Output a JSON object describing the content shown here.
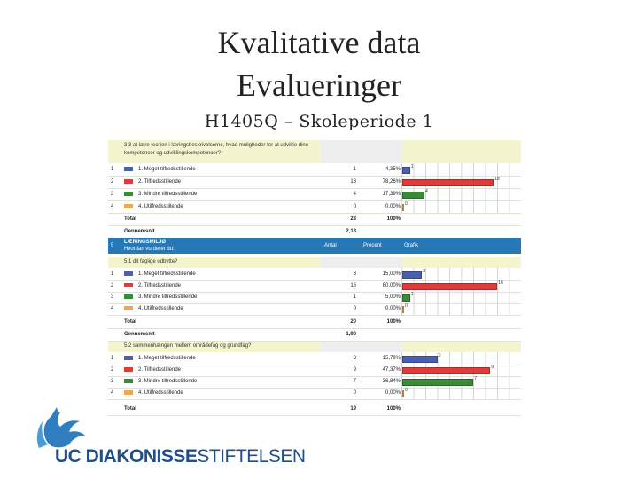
{
  "slide": {
    "title_line1": "Kvalitative data",
    "title_line2": "Evalueringer",
    "subtitle": "H1405Q – Skoleperiode 1"
  },
  "colors": {
    "blue": "#4a5fb0",
    "red": "#e23a3a",
    "green": "#3a8a3a",
    "orange": "#f0a848",
    "header": "#2779b5",
    "question_bg": "#f4f4cf"
  },
  "table_top": {
    "question": "3.3 at lære teorien i læringsbeskrivelserne, hvad muligheder for at udvikle dine kompetencer og udviklingskompetencer?",
    "rows": [
      {
        "idx": "1",
        "label": "1. Meget tilfredsstillende",
        "count": "1",
        "pct": "4,35%",
        "bar": "1",
        "color": "blue",
        "frac": 0.05
      },
      {
        "idx": "2",
        "label": "2. Tilfredsstillende",
        "count": "18",
        "pct": "78,26%",
        "bar": "18",
        "color": "red",
        "frac": 0.75
      },
      {
        "idx": "3",
        "label": "3. Mindre tilfredsstillende",
        "count": "4",
        "pct": "17,39%",
        "bar": "4",
        "color": "green",
        "frac": 0.17
      },
      {
        "idx": "4",
        "label": "4. Utilfredsstillende",
        "count": "0",
        "pct": "0,00%",
        "bar": "0",
        "color": "orange",
        "frac": 0.0
      }
    ],
    "total_label": "Total",
    "total_count": "23",
    "total_pct": "100%",
    "avg_label": "Gennemsnit",
    "avg_value": "2,13"
  },
  "table_main": {
    "section_no": "5",
    "section_title": "LÆRINGSMILJØ",
    "section_sub": "Hvordan vurderer du:",
    "col_count": "Antal",
    "col_pct": "Procent",
    "col_graph": "Grafik",
    "q1": "5.1 dit faglige udbytte?",
    "q1_rows": [
      {
        "idx": "1",
        "label": "1. Meget tilfredsstillende",
        "count": "3",
        "pct": "15,00%",
        "bar": "3",
        "color": "blue",
        "frac": 0.15
      },
      {
        "idx": "2",
        "label": "2. Tilfredsstillende",
        "count": "16",
        "pct": "80,00%",
        "bar": "16",
        "color": "red",
        "frac": 0.78
      },
      {
        "idx": "3",
        "label": "3. Mindre tilfredsstillende",
        "count": "1",
        "pct": "5,00%",
        "bar": "1",
        "color": "green",
        "frac": 0.05
      },
      {
        "idx": "4",
        "label": "4. Utilfredsstillende",
        "count": "0",
        "pct": "0,00%",
        "bar": "0",
        "color": "orange",
        "frac": 0.0
      }
    ],
    "q1_total_label": "Total",
    "q1_total_count": "20",
    "q1_total_pct": "100%",
    "q1_avg_label": "Gennemsnit",
    "q1_avg_value": "1,90",
    "q2": "5.2 sammenhængen mellem områdefag og grundfag?",
    "q2_rows": [
      {
        "idx": "1",
        "label": "1. Meget tilfredsstillende",
        "count": "3",
        "pct": "15,79%",
        "bar": "3",
        "color": "blue",
        "frac": 0.28
      },
      {
        "idx": "2",
        "label": "2. Tilfredsstillende",
        "count": "9",
        "pct": "47,37%",
        "bar": "9",
        "color": "red",
        "frac": 0.72
      },
      {
        "idx": "3",
        "label": "3. Mindre tilfredsstillende",
        "count": "7",
        "pct": "36,84%",
        "bar": "7",
        "color": "green",
        "frac": 0.58
      },
      {
        "idx": "4",
        "label": "4. Utilfredsstillende",
        "count": "0",
        "pct": "0,00%",
        "bar": "0",
        "color": "orange",
        "frac": 0.0
      }
    ],
    "q2_total_label": "Total",
    "q2_total_count": "19",
    "q2_total_pct": "100%"
  },
  "brand": {
    "part1": "UC DIAKONISSE",
    "part2": "STIFTELSEN",
    "logo_icon": "bird-hand-logo-icon"
  }
}
